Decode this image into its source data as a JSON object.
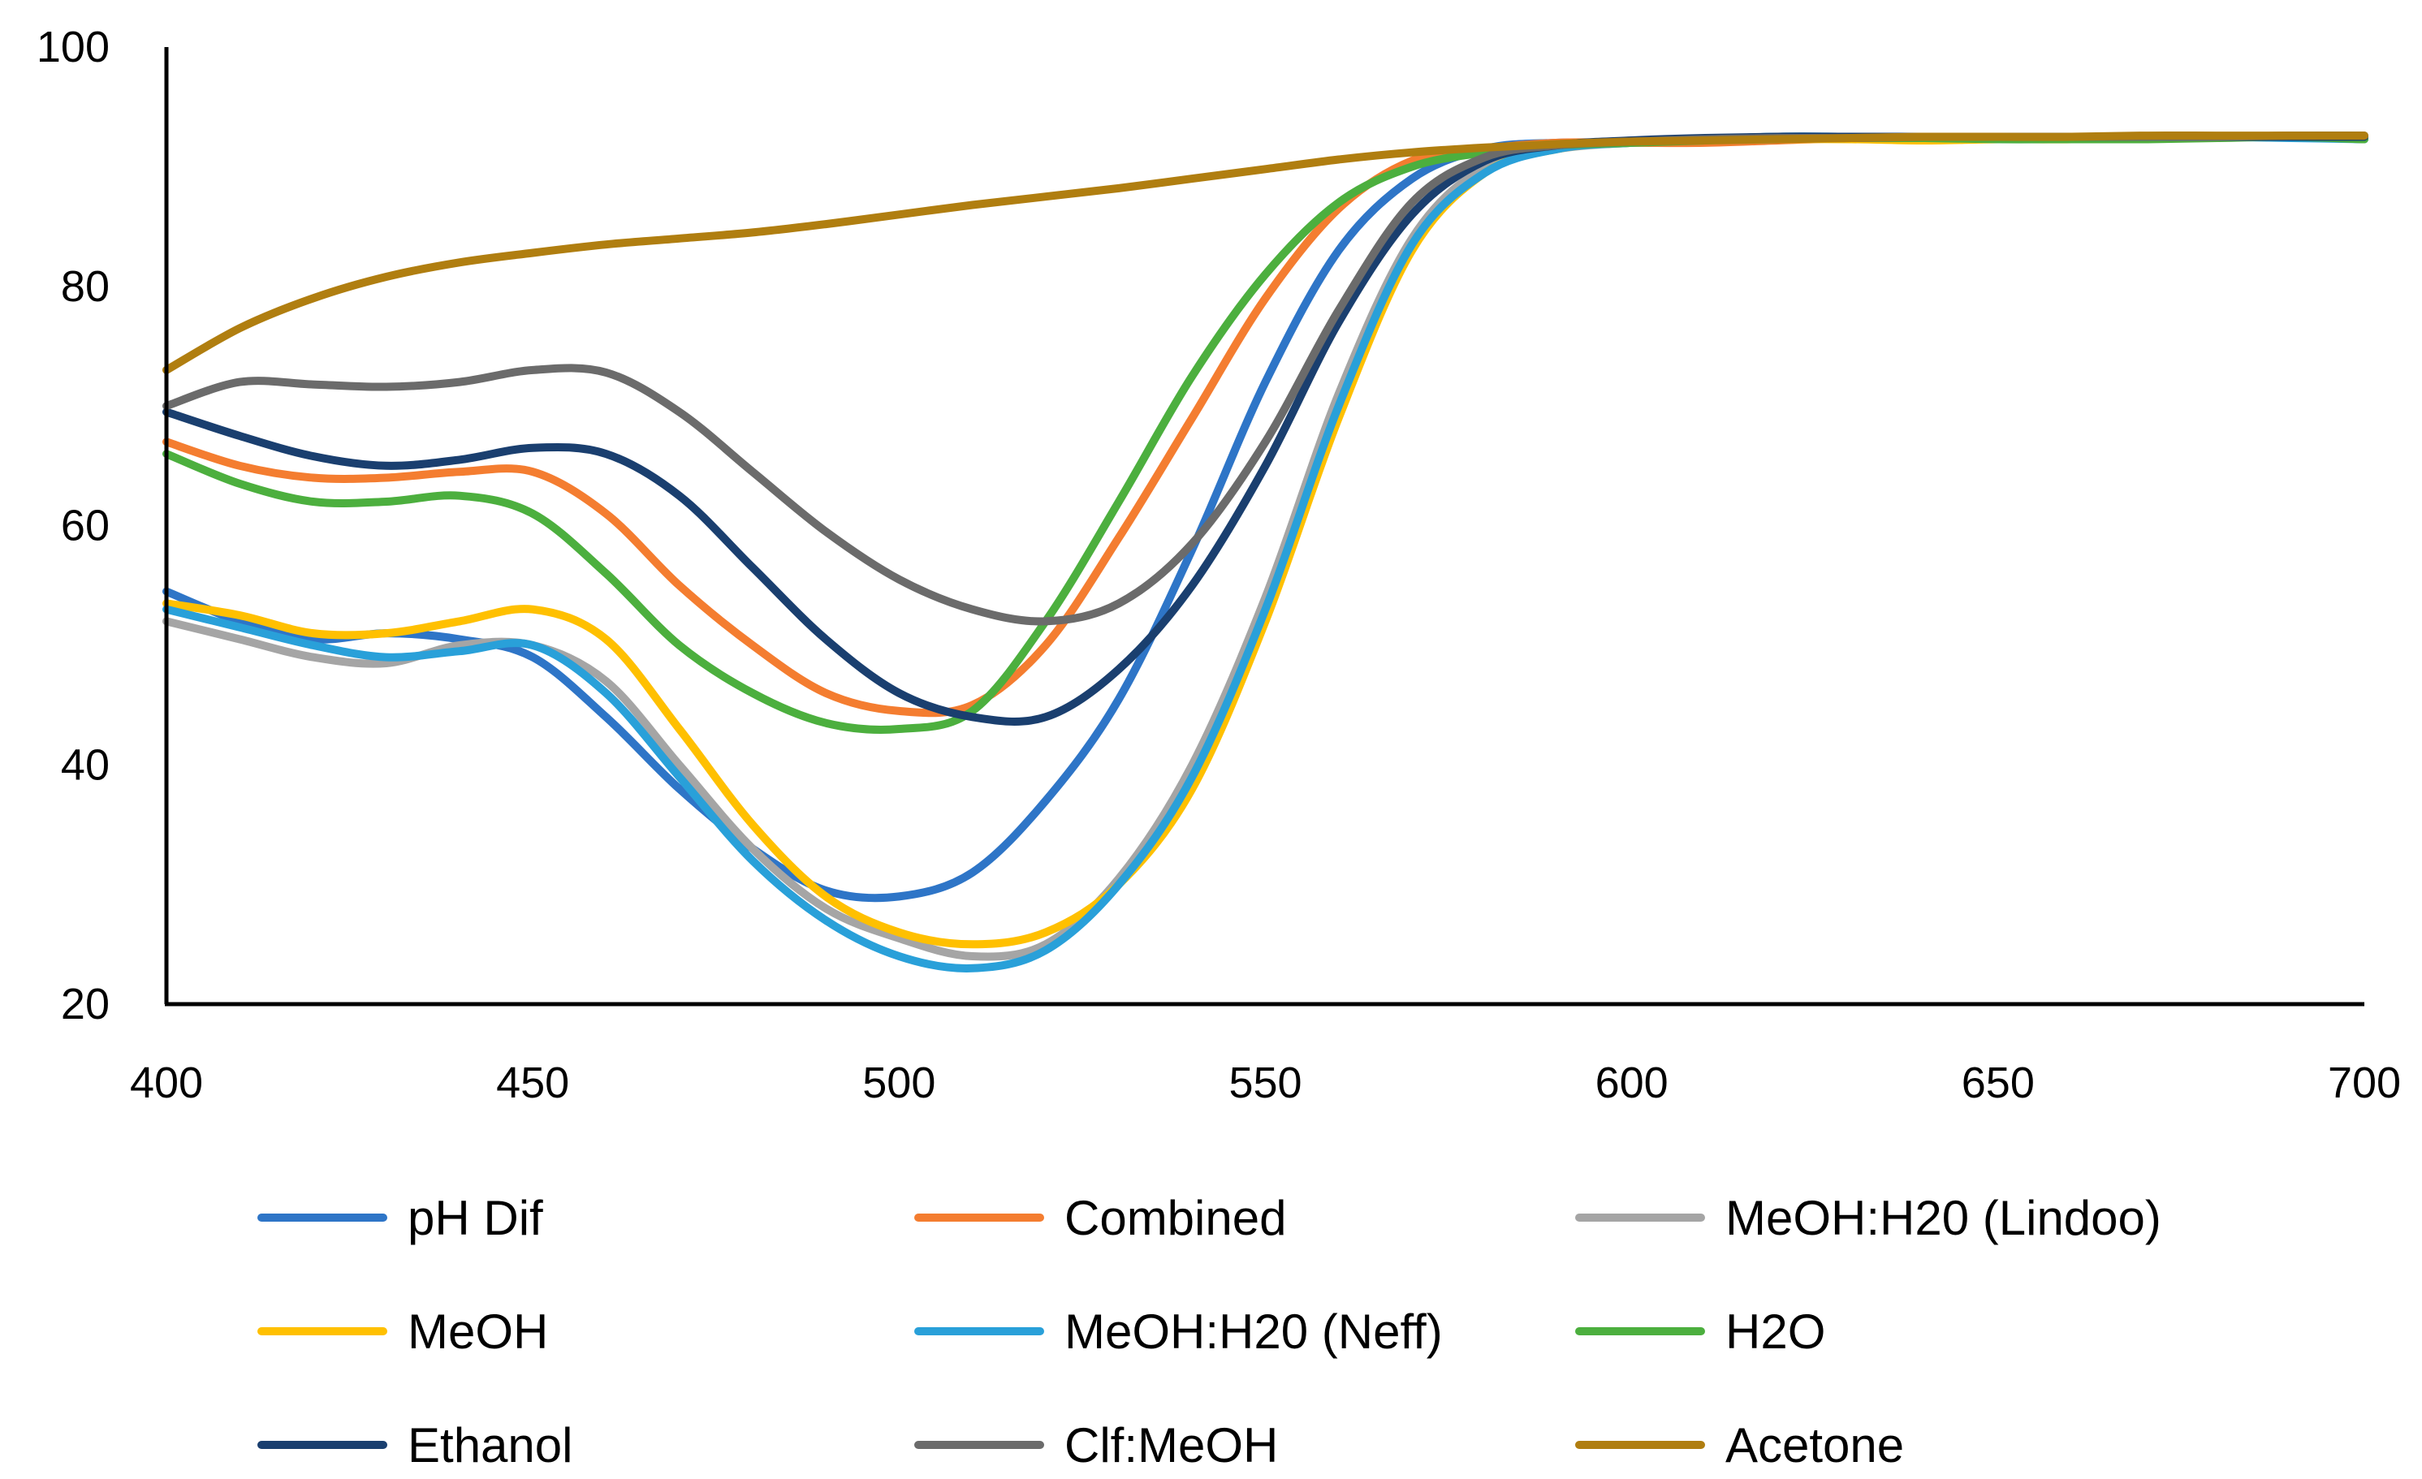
{
  "chart_data": {
    "type": "line",
    "title": "",
    "xlabel": "",
    "ylabel": "",
    "xlim": [
      400,
      700
    ],
    "ylim": [
      20,
      100
    ],
    "x_ticks": [
      "400",
      "450",
      "500",
      "550",
      "600",
      "650",
      "700"
    ],
    "y_ticks": [
      "20",
      "40",
      "60",
      "80",
      "100"
    ],
    "grid": false,
    "legend_position": "bottom",
    "x": [
      400,
      410,
      420,
      430,
      440,
      450,
      460,
      470,
      480,
      490,
      500,
      510,
      520,
      530,
      540,
      550,
      560,
      570,
      580,
      590,
      600,
      610,
      620,
      630,
      640,
      650,
      660,
      670,
      680,
      690,
      700
    ],
    "series": [
      {
        "name": "pH Dif",
        "color": "#2e75c7",
        "values": [
          54.5,
          52,
          50.5,
          51,
          50.5,
          49,
          44,
          38,
          33,
          29.5,
          29,
          31,
          37,
          45.5,
          58,
          72,
          83,
          89,
          91.5,
          92,
          92,
          92.3,
          92.5,
          92.5,
          92.5,
          92.5,
          92.5,
          92.5,
          92.5,
          92.5,
          92.3
        ]
      },
      {
        "name": "Combined",
        "color": "#f47d30",
        "values": [
          67,
          65,
          64,
          64,
          64.5,
          64.5,
          61,
          55,
          50,
          46,
          44.5,
          45,
          50,
          59,
          69,
          79,
          86.5,
          90.5,
          91.5,
          92,
          92,
          92,
          92.2,
          92.4,
          92.5,
          92.5,
          92.5,
          92.5,
          92.5,
          92.6,
          92.6
        ]
      },
      {
        "name": "MeOH:H20 (Lindoo)",
        "color": "#a5a5a5",
        "values": [
          52,
          50.5,
          49,
          48.5,
          50,
          50,
          47,
          40,
          33,
          28,
          25.5,
          24,
          25,
          30.5,
          40,
          54,
          71,
          84,
          90,
          91.5,
          92,
          92.2,
          92.3,
          92.4,
          92.5,
          92.5,
          92.5,
          92.5,
          92.5,
          92.6,
          92.6
        ]
      },
      {
        "name": "MeOH",
        "color": "#ffc000",
        "values": [
          53.5,
          52.5,
          51,
          51,
          52,
          53,
          50.5,
          43,
          35,
          29,
          26,
          25,
          26,
          30,
          38,
          52,
          69,
          83,
          89.5,
          91.5,
          92,
          92.2,
          92.3,
          92.3,
          92.2,
          92.3,
          92.3,
          92.5,
          92.5,
          92.6,
          92.6
        ]
      },
      {
        "name": "MeOH:H20 (Neff)",
        "color": "#29a0d9",
        "values": [
          53,
          51.5,
          50,
          49,
          49.5,
          50,
          46,
          39,
          32,
          27,
          24,
          23,
          24.5,
          30,
          39,
          53,
          70,
          83.5,
          89.5,
          91.5,
          92,
          92.3,
          92.5,
          92.5,
          92.5,
          92.5,
          92.5,
          92.5,
          92.5,
          92.4,
          92.3
        ]
      },
      {
        "name": "H2O",
        "color": "#4caf3e",
        "values": [
          66,
          63.5,
          62,
          62,
          62.5,
          61,
          56,
          50,
          46,
          43.5,
          43,
          44.5,
          52,
          62,
          72.5,
          81,
          87,
          90,
          91.2,
          91.8,
          92,
          92.2,
          92.4,
          92.4,
          92.4,
          92.3,
          92.3,
          92.3,
          92.4,
          92.5,
          92.3
        ]
      },
      {
        "name": "Ethanol",
        "color": "#1a3f6f",
        "values": [
          69.5,
          67.5,
          65.8,
          65,
          65.5,
          66.5,
          66,
          62.5,
          56.5,
          50.5,
          46,
          44,
          44,
          48,
          55,
          65,
          77,
          86,
          90.5,
          91.8,
          92.2,
          92.4,
          92.5,
          92.5,
          92.5,
          92.5,
          92.5,
          92.5,
          92.5,
          92.5,
          92.5
        ]
      },
      {
        "name": "Clf:MeOH",
        "color": "#6b6b6b",
        "values": [
          70,
          72,
          71.8,
          71.6,
          72,
          73,
          72.8,
          69.5,
          64.5,
          59.5,
          55.5,
          53,
          52,
          53.5,
          58.5,
          67,
          78,
          87,
          90.8,
          91.8,
          92.1,
          92.3,
          92.4,
          92.4,
          92.5,
          92.5,
          92.5,
          92.5,
          92.5,
          92.6,
          92.6
        ]
      },
      {
        "name": "Acetone",
        "color": "#b07e10",
        "values": [
          73,
          76.5,
          79,
          80.8,
          82,
          82.8,
          83.5,
          84,
          84.5,
          85.2,
          86,
          86.8,
          87.5,
          88.2,
          89,
          89.8,
          90.6,
          91.2,
          91.6,
          91.9,
          92.1,
          92.2,
          92.3,
          92.4,
          92.5,
          92.5,
          92.5,
          92.6,
          92.6,
          92.6,
          92.6
        ]
      }
    ]
  }
}
